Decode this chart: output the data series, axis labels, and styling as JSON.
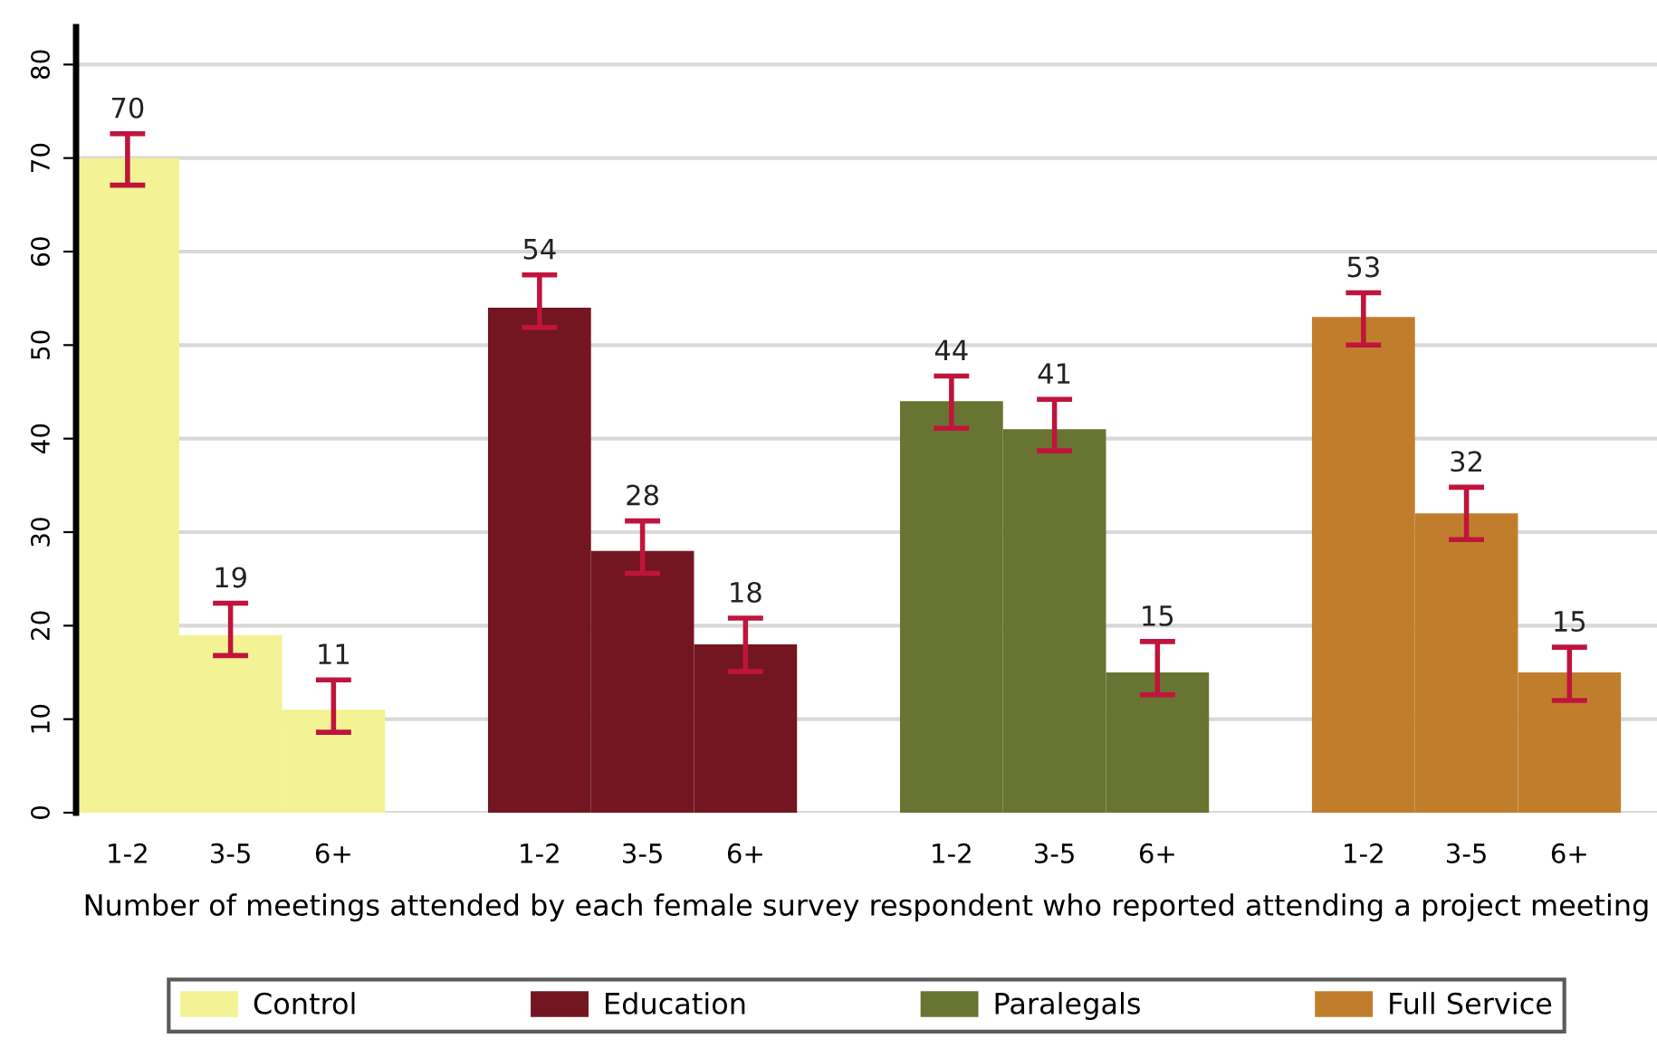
{
  "chart_data": {
    "type": "bar",
    "xlabel": "Number of meetings attended by each female survey respondent who reported attending a project meeting",
    "categories": [
      "1-2",
      "3-5",
      "6+",
      null,
      "1-2",
      "3-5",
      "6+",
      null,
      "1-2",
      "3-5",
      "6+",
      null,
      "1-2",
      "3-5",
      "6+"
    ],
    "series": [
      {
        "name": "Control",
        "color": "#f3f294",
        "values": [
          70,
          19,
          11,
          null,
          null,
          null,
          null,
          null,
          null,
          null,
          null,
          null,
          null,
          null,
          null
        ],
        "errors": [
          [
            67.1,
            72.6
          ],
          [
            16.8,
            22.4
          ],
          [
            8.6,
            14.2
          ],
          null,
          null,
          null,
          null,
          null,
          null,
          null,
          null,
          null,
          null,
          null,
          null
        ]
      },
      {
        "name": "Education",
        "color": "#731621",
        "values": [
          null,
          null,
          null,
          null,
          54,
          28,
          18,
          null,
          null,
          null,
          null,
          null,
          null,
          null,
          null
        ],
        "errors": [
          null,
          null,
          null,
          null,
          [
            51.9,
            57.5
          ],
          [
            25.6,
            31.2
          ],
          [
            15.1,
            20.8
          ],
          null,
          null,
          null,
          null,
          null,
          null,
          null,
          null
        ]
      },
      {
        "name": "Paralegals",
        "color": "#687432",
        "values": [
          null,
          null,
          null,
          null,
          null,
          null,
          null,
          null,
          44,
          41,
          15,
          null,
          null,
          null,
          null
        ],
        "errors": [
          null,
          null,
          null,
          null,
          null,
          null,
          null,
          null,
          [
            41.1,
            46.7
          ],
          [
            38.7,
            44.2
          ],
          [
            12.6,
            18.3
          ],
          null,
          null,
          null,
          null
        ]
      },
      {
        "name": "Full Service",
        "color": "#c07e2d",
        "values": [
          null,
          null,
          null,
          null,
          null,
          null,
          null,
          null,
          null,
          null,
          null,
          null,
          53,
          32,
          15
        ],
        "errors": [
          null,
          null,
          null,
          null,
          null,
          null,
          null,
          null,
          null,
          null,
          null,
          null,
          [
            50.0,
            55.6
          ],
          [
            29.2,
            34.8
          ],
          [
            12.0,
            17.7
          ]
        ]
      }
    ],
    "ylim": [
      0,
      84
    ],
    "yticks": [
      0,
      10,
      20,
      30,
      40,
      50,
      60,
      70,
      80
    ],
    "grid": "y",
    "legend": "bottom",
    "data_labels": true
  }
}
